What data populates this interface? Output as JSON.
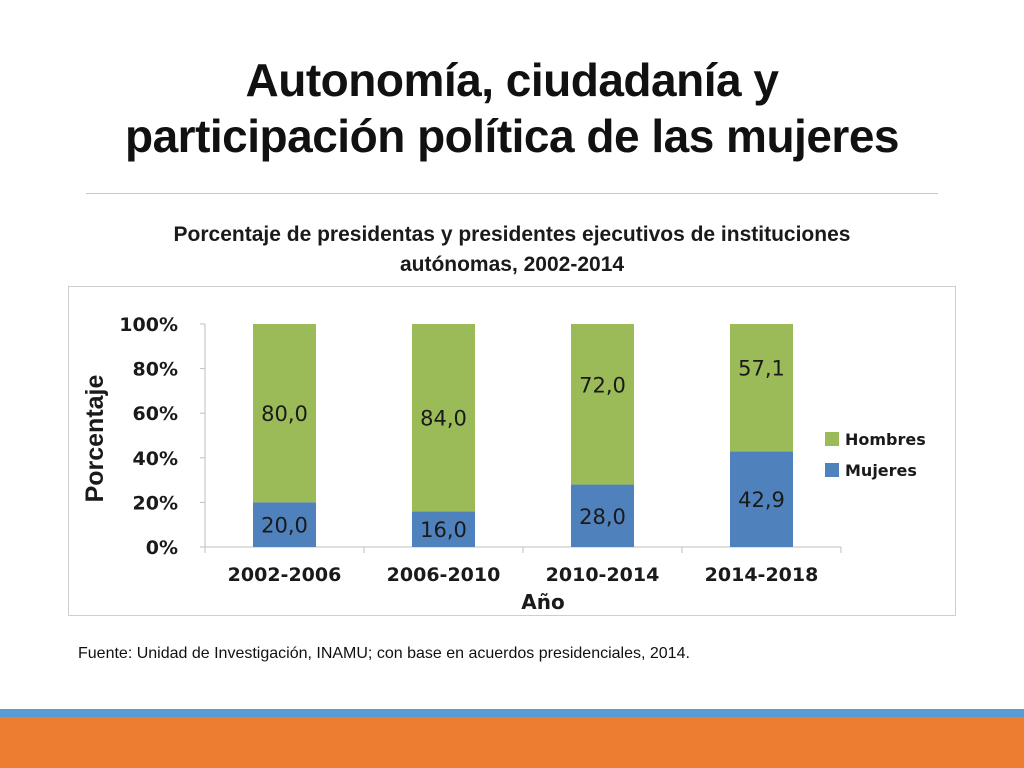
{
  "slide": {
    "title_line1": "Autonomía, ciudadanía y",
    "title_line2": "participación política de las mujeres",
    "source": "Fuente: Unidad de Investigación, INAMU; con base en acuerdos presidenciales, 2014."
  },
  "colors": {
    "hombres": "#9bbb59",
    "mujeres": "#4f81bd",
    "band_blue": "#5b9bd5",
    "band_orange": "#ed7d31"
  },
  "chart_data": {
    "type": "bar",
    "stacked": true,
    "title_line1": "Porcentaje de presidentas y presidentes ejecutivos de instituciones",
    "title_line2": "autónomas, 2002-2014",
    "xlabel": "Año",
    "ylabel": "Porcentaje",
    "categories": [
      "2002-2006",
      "2006-2010",
      "2010-2014",
      "2014-2018"
    ],
    "series": [
      {
        "name": "Mujeres",
        "values": [
          20.0,
          16.0,
          28.0,
          42.9
        ],
        "labels": [
          "20,0",
          "16,0",
          "28,0",
          "42,9"
        ]
      },
      {
        "name": "Hombres",
        "values": [
          80.0,
          84.0,
          72.0,
          57.1
        ],
        "labels": [
          "80,0",
          "84,0",
          "72,0",
          "57,1"
        ]
      }
    ],
    "ylim": [
      0,
      100
    ],
    "yticks": [
      0,
      20,
      40,
      60,
      80,
      100
    ],
    "ytick_labels": [
      "0%",
      "20%",
      "40%",
      "60%",
      "80%",
      "100%"
    ],
    "grid": false,
    "legend_position": "right",
    "legend_order": [
      "Hombres",
      "Mujeres"
    ]
  }
}
